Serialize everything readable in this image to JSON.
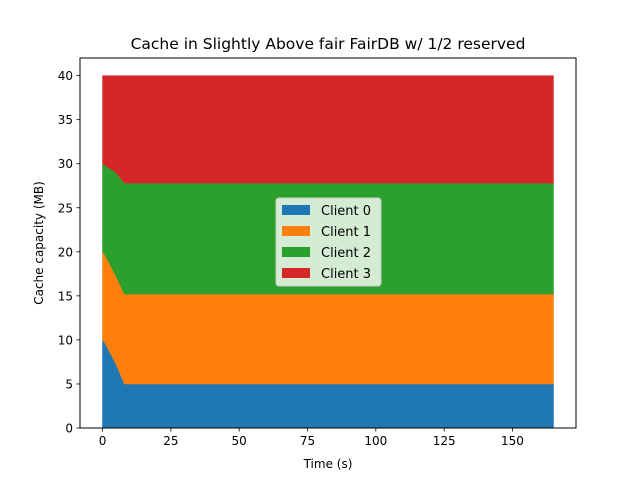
{
  "chart_data": {
    "type": "area",
    "stacked": true,
    "title": "Cache in Slightly Above fair FairDB w/ 1/2 reserved",
    "xlabel": "Time (s)",
    "ylabel": "Cache capacity (MB)",
    "xlim": [
      -8.25,
      173.25
    ],
    "ylim": [
      0,
      42
    ],
    "xticks": [
      0,
      25,
      50,
      75,
      100,
      125,
      150
    ],
    "yticks": [
      0,
      5,
      10,
      15,
      20,
      25,
      30,
      35,
      40
    ],
    "grid": false,
    "legend_position": "center",
    "x": [
      0,
      1,
      5,
      8,
      9,
      20,
      50,
      100,
      150,
      165
    ],
    "series": [
      {
        "name": "Client 0",
        "color": "#1f77b4",
        "values": [
          10,
          9.6,
          7.2,
          5.0,
          5.0,
          5.0,
          5.0,
          5.0,
          5.0,
          5.0
        ]
      },
      {
        "name": "Client 1",
        "color": "#ff7f0e",
        "values": [
          10,
          10.0,
          10.0,
          10.2,
          10.2,
          10.2,
          10.2,
          10.2,
          10.2,
          10.2
        ]
      },
      {
        "name": "Client 2",
        "color": "#2ca02c",
        "values": [
          10,
          10.2,
          11.8,
          12.6,
          12.6,
          12.6,
          12.6,
          12.6,
          12.6,
          12.6
        ]
      },
      {
        "name": "Client 3",
        "color": "#d62728",
        "values": [
          10,
          10.2,
          11.0,
          12.2,
          12.2,
          12.2,
          12.2,
          12.2,
          12.2,
          12.2
        ]
      }
    ]
  }
}
